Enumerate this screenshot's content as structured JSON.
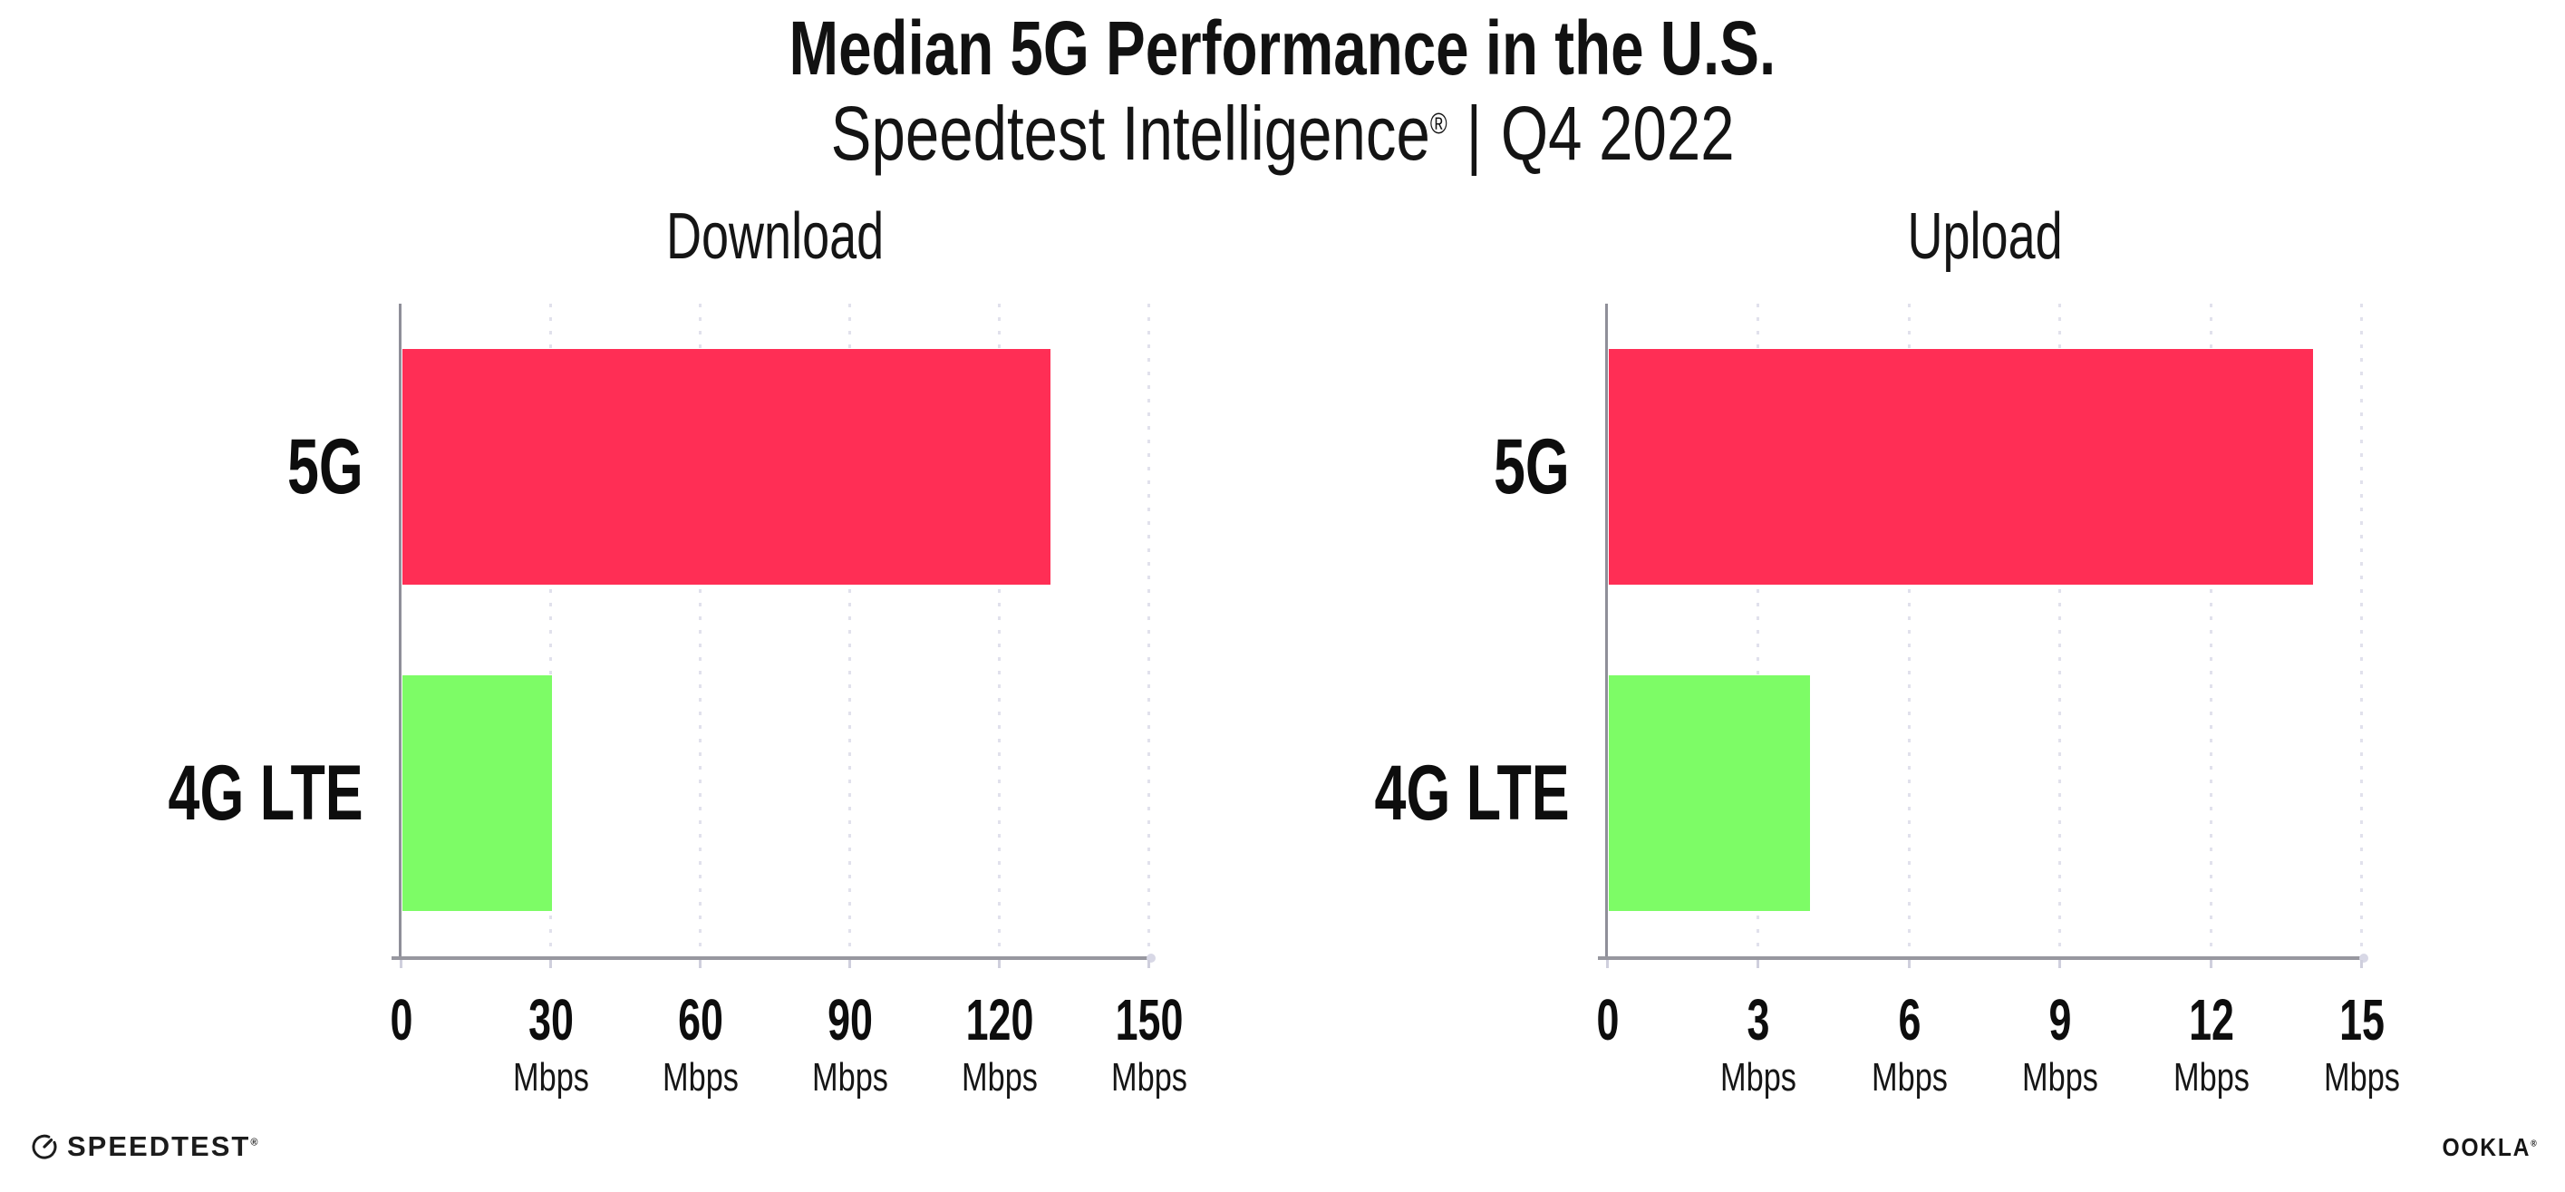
{
  "header": {
    "title": "Median 5G Performance in the U.S.",
    "subtitle_brand": "Speedtest Intelligence",
    "subtitle_registered": "®",
    "subtitle_separator": "|",
    "subtitle_period": "Q4 2022"
  },
  "footer": {
    "speedtest_logo_text": "SPEEDTEST",
    "speedtest_registered": "®",
    "ookla_logo_text": "OOKLA",
    "ookla_registered": "®"
  },
  "colors": {
    "bar_5g": "#FF2E55",
    "bar_4g_lte": "#7DFC66",
    "axis": "#97979F",
    "gridline": "#E1E1EC",
    "text": "#111111",
    "background": "#FFFFFF"
  },
  "chart_data": [
    {
      "type": "bar",
      "orientation": "horizontal",
      "title": "Download",
      "categories": [
        "5G",
        "4G LTE"
      ],
      "values": [
        130,
        30
      ],
      "unit": "Mbps",
      "xlabel": "",
      "ylabel": "",
      "xlim": [
        0,
        150
      ],
      "ticks": [
        0,
        30,
        60,
        90,
        120,
        150
      ],
      "grid": "dotted-vertical",
      "legend": "none",
      "bar_colors": [
        "#FF2E55",
        "#7DFC66"
      ]
    },
    {
      "type": "bar",
      "orientation": "horizontal",
      "title": "Upload",
      "categories": [
        "5G",
        "4G LTE"
      ],
      "values": [
        14,
        4
      ],
      "unit": "Mbps",
      "xlabel": "",
      "ylabel": "",
      "xlim": [
        0,
        15
      ],
      "ticks": [
        0,
        3,
        6,
        9,
        12,
        15
      ],
      "grid": "dotted-vertical",
      "legend": "none",
      "bar_colors": [
        "#FF2E55",
        "#7DFC66"
      ]
    }
  ]
}
